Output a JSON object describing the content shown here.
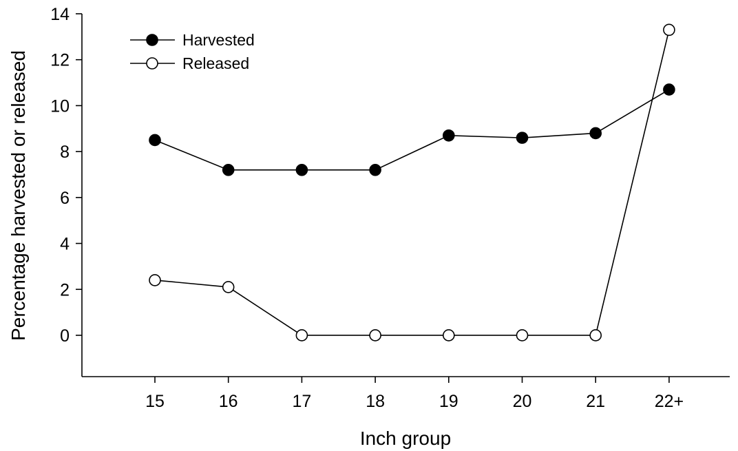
{
  "chart_data": {
    "type": "line",
    "categories": [
      "15",
      "16",
      "17",
      "18",
      "19",
      "20",
      "21",
      "22+"
    ],
    "series": [
      {
        "name": "Harvested",
        "marker": "filled-circle",
        "values": [
          8.5,
          7.2,
          7.2,
          7.2,
          8.7,
          8.6,
          8.8,
          10.7
        ]
      },
      {
        "name": "Released",
        "marker": "open-circle",
        "values": [
          2.4,
          2.1,
          0,
          0,
          0,
          0,
          0,
          13.3
        ]
      }
    ],
    "xlabel": "Inch group",
    "ylabel": "Percentage harvested or released",
    "ylim": [
      -1.8,
      14
    ],
    "yticks": [
      "0",
      "2",
      "4",
      "6",
      "8",
      "10",
      "12",
      "14"
    ],
    "grid": false,
    "legend_position": "top-left",
    "colors": {
      "line": "#000000",
      "filled_marker": "#000000",
      "open_marker_fill": "#ffffff"
    }
  }
}
